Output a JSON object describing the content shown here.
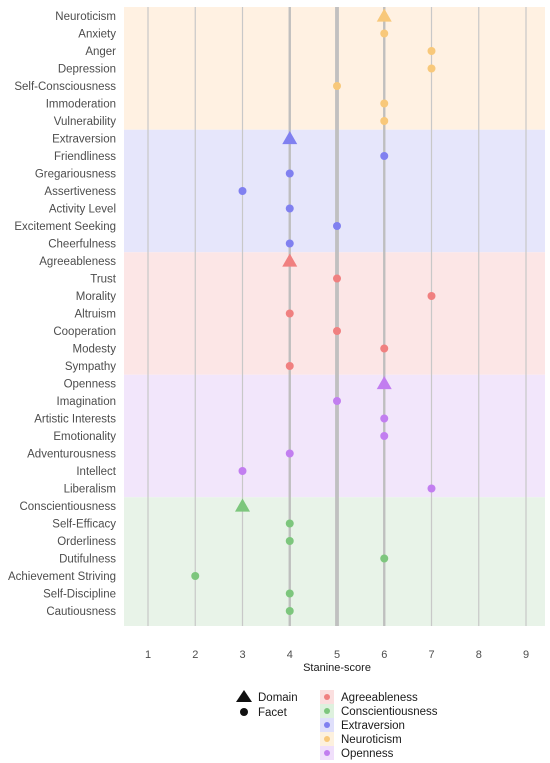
{
  "chart_data": {
    "type": "scatter",
    "xlabel": "Stanine-score",
    "xlim": [
      0.75,
      9.4
    ],
    "x_ticks": [
      "1",
      "2",
      "3",
      "4",
      "5",
      "6",
      "7",
      "8",
      "9"
    ],
    "reference_lines": [
      4,
      5,
      6
    ],
    "grid": true,
    "legend_position": "bottom",
    "shape_legend": [
      {
        "label": "Domain",
        "shape": "triangle"
      },
      {
        "label": "Facet",
        "shape": "circle"
      }
    ],
    "group_legend": [
      {
        "name": "Agreeableness",
        "color": "#f08080"
      },
      {
        "name": "Conscientiousness",
        "color": "#7dc67d"
      },
      {
        "name": "Extraversion",
        "color": "#8080f0"
      },
      {
        "name": "Neuroticism",
        "color": "#f8c87a"
      },
      {
        "name": "Openness",
        "color": "#c27ef0"
      }
    ],
    "groups": [
      {
        "name": "Neuroticism",
        "band_color": "#fff1e2",
        "point_color": "#f8c87a",
        "items": [
          {
            "label": "Neuroticism",
            "kind": "domain",
            "value": 6
          },
          {
            "label": "Anxiety",
            "kind": "facet",
            "value": 6
          },
          {
            "label": "Anger",
            "kind": "facet",
            "value": 7
          },
          {
            "label": "Depression",
            "kind": "facet",
            "value": 7
          },
          {
            "label": "Self-Consciousness",
            "kind": "facet",
            "value": 5
          },
          {
            "label": "Immoderation",
            "kind": "facet",
            "value": 6
          },
          {
            "label": "Vulnerability",
            "kind": "facet",
            "value": 6
          }
        ]
      },
      {
        "name": "Extraversion",
        "band_color": "#e6e6fb",
        "point_color": "#8080f0",
        "items": [
          {
            "label": "Extraversion",
            "kind": "domain",
            "value": 4
          },
          {
            "label": "Friendliness",
            "kind": "facet",
            "value": 6
          },
          {
            "label": "Gregariousness",
            "kind": "facet",
            "value": 4
          },
          {
            "label": "Assertiveness",
            "kind": "facet",
            "value": 3
          },
          {
            "label": "Activity Level",
            "kind": "facet",
            "value": 4
          },
          {
            "label": "Excitement Seeking",
            "kind": "facet",
            "value": 5
          },
          {
            "label": "Cheerfulness",
            "kind": "facet",
            "value": 4
          }
        ]
      },
      {
        "name": "Agreeableness",
        "band_color": "#fce6e6",
        "point_color": "#f08080",
        "items": [
          {
            "label": "Agreeableness",
            "kind": "domain",
            "value": 4
          },
          {
            "label": "Trust",
            "kind": "facet",
            "value": 5
          },
          {
            "label": "Morality",
            "kind": "facet",
            "value": 7
          },
          {
            "label": "Altruism",
            "kind": "facet",
            "value": 4
          },
          {
            "label": "Cooperation",
            "kind": "facet",
            "value": 5
          },
          {
            "label": "Modesty",
            "kind": "facet",
            "value": 6
          },
          {
            "label": "Sympathy",
            "kind": "facet",
            "value": 4
          }
        ]
      },
      {
        "name": "Openness",
        "band_color": "#f2e6fb",
        "point_color": "#c27ef0",
        "items": [
          {
            "label": "Openness",
            "kind": "domain",
            "value": 6
          },
          {
            "label": "Imagination",
            "kind": "facet",
            "value": 5
          },
          {
            "label": "Artistic Interests",
            "kind": "facet",
            "value": 6
          },
          {
            "label": "Emotionality",
            "kind": "facet",
            "value": 6
          },
          {
            "label": "Adventurousness",
            "kind": "facet",
            "value": 4
          },
          {
            "label": "Intellect",
            "kind": "facet",
            "value": 3
          },
          {
            "label": "Liberalism",
            "kind": "facet",
            "value": 7
          }
        ]
      },
      {
        "name": "Conscientiousness",
        "band_color": "#e8f3e8",
        "point_color": "#7dc67d",
        "items": [
          {
            "label": "Conscientiousness",
            "kind": "domain",
            "value": 3
          },
          {
            "label": "Self-Efficacy",
            "kind": "facet",
            "value": 4
          },
          {
            "label": "Orderliness",
            "kind": "facet",
            "value": 4
          },
          {
            "label": "Dutifulness",
            "kind": "facet",
            "value": 6
          },
          {
            "label": "Achievement Striving",
            "kind": "facet",
            "value": 2
          },
          {
            "label": "Self-Discipline",
            "kind": "facet",
            "value": 4
          },
          {
            "label": "Cautiousness",
            "kind": "facet",
            "value": 4
          }
        ]
      }
    ]
  }
}
